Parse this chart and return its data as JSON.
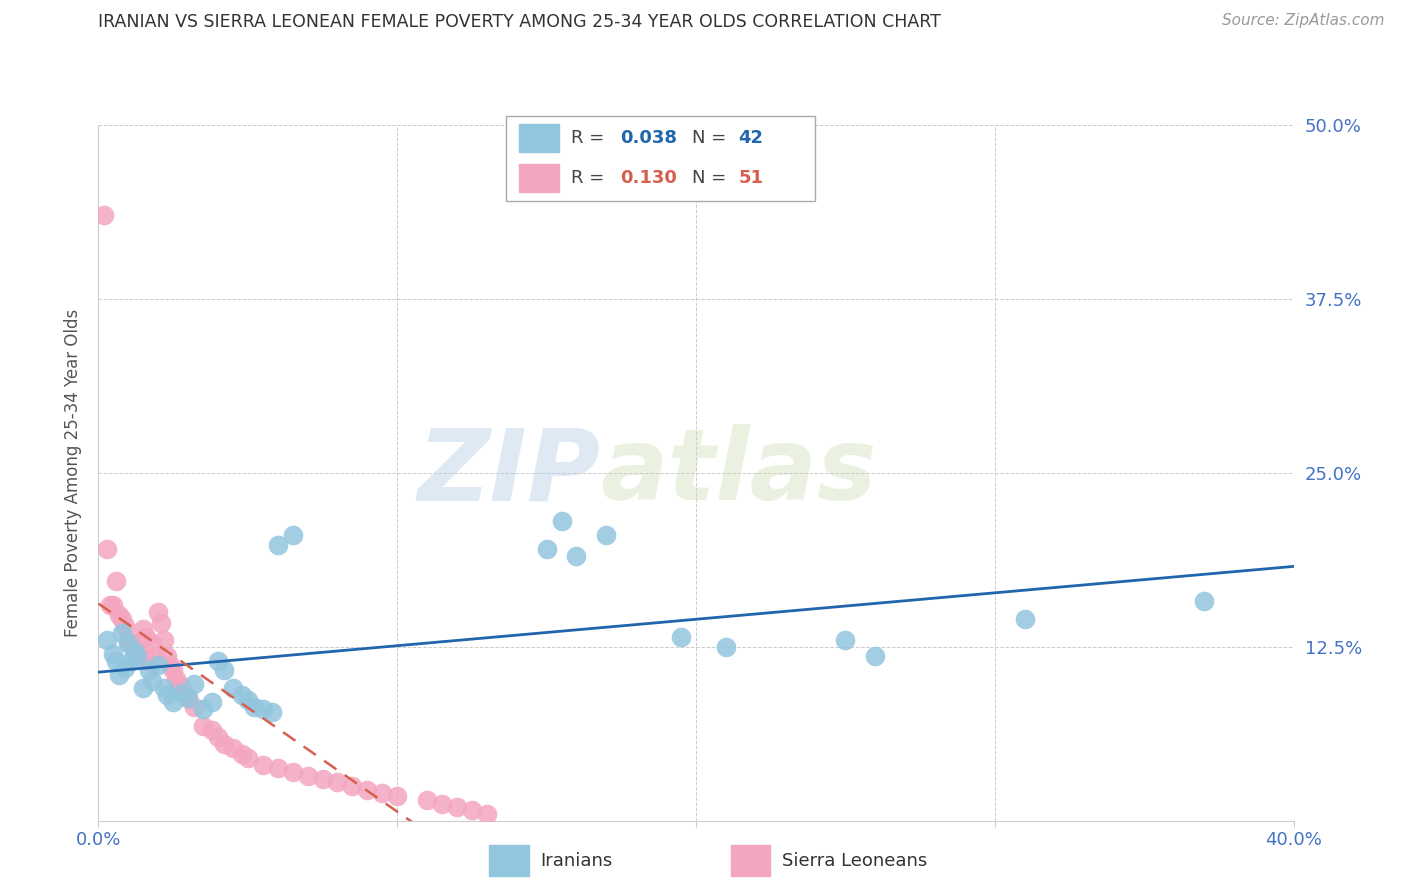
{
  "title": "IRANIAN VS SIERRA LEONEAN FEMALE POVERTY AMONG 25-34 YEAR OLDS CORRELATION CHART",
  "source": "Source: ZipAtlas.com",
  "ylabel": "Female Poverty Among 25-34 Year Olds",
  "xlim": [
    0.0,
    0.4
  ],
  "ylim": [
    0.0,
    0.5
  ],
  "xticks": [
    0.0,
    0.1,
    0.2,
    0.3,
    0.4
  ],
  "xticklabels": [
    "0.0%",
    "",
    "",
    "",
    "40.0%"
  ],
  "yticks": [
    0.0,
    0.125,
    0.25,
    0.375,
    0.5
  ],
  "yticklabels": [
    "",
    "12.5%",
    "25.0%",
    "37.5%",
    "50.0%"
  ],
  "ytick_color": "#4472c4",
  "xtick_color": "#4472c4",
  "background_color": "#ffffff",
  "grid_color": "#cccccc",
  "watermark_zip": "ZIP",
  "watermark_atlas": "atlas",
  "legend_r1": "0.038",
  "legend_n1": "42",
  "legend_r2": "0.130",
  "legend_n2": "51",
  "iranian_color": "#92c5de",
  "sierra_color": "#f4a6c0",
  "trend_iranian_color": "#2166ac",
  "trend_sierra_color": "#d6604d",
  "iranian_points_x": [
    0.003,
    0.005,
    0.006,
    0.007,
    0.008,
    0.009,
    0.01,
    0.011,
    0.012,
    0.013,
    0.015,
    0.017,
    0.018,
    0.02,
    0.022,
    0.023,
    0.025,
    0.028,
    0.03,
    0.032,
    0.035,
    0.038,
    0.04,
    0.042,
    0.045,
    0.048,
    0.05,
    0.052,
    0.055,
    0.058,
    0.06,
    0.065,
    0.15,
    0.155,
    0.16,
    0.17,
    0.195,
    0.21,
    0.25,
    0.26,
    0.31,
    0.37
  ],
  "iranian_points_y": [
    0.13,
    0.12,
    0.115,
    0.105,
    0.135,
    0.11,
    0.128,
    0.115,
    0.122,
    0.118,
    0.095,
    0.108,
    0.1,
    0.112,
    0.095,
    0.09,
    0.085,
    0.092,
    0.088,
    0.098,
    0.08,
    0.085,
    0.115,
    0.108,
    0.095,
    0.09,
    0.087,
    0.082,
    0.08,
    0.078,
    0.198,
    0.205,
    0.195,
    0.215,
    0.19,
    0.205,
    0.132,
    0.125,
    0.13,
    0.118,
    0.145,
    0.158
  ],
  "sierra_points_x": [
    0.002,
    0.003,
    0.004,
    0.005,
    0.006,
    0.007,
    0.008,
    0.009,
    0.01,
    0.011,
    0.012,
    0.013,
    0.014,
    0.015,
    0.016,
    0.017,
    0.018,
    0.019,
    0.02,
    0.021,
    0.022,
    0.023,
    0.024,
    0.025,
    0.026,
    0.027,
    0.028,
    0.03,
    0.032,
    0.035,
    0.038,
    0.04,
    0.042,
    0.045,
    0.048,
    0.05,
    0.055,
    0.06,
    0.065,
    0.07,
    0.075,
    0.08,
    0.085,
    0.09,
    0.095,
    0.1,
    0.11,
    0.115,
    0.12,
    0.125,
    0.13
  ],
  "sierra_points_y": [
    0.435,
    0.195,
    0.155,
    0.155,
    0.172,
    0.148,
    0.145,
    0.14,
    0.13,
    0.128,
    0.125,
    0.122,
    0.118,
    0.138,
    0.132,
    0.115,
    0.128,
    0.118,
    0.15,
    0.142,
    0.13,
    0.118,
    0.112,
    0.108,
    0.102,
    0.098,
    0.095,
    0.088,
    0.082,
    0.068,
    0.065,
    0.06,
    0.055,
    0.052,
    0.048,
    0.045,
    0.04,
    0.038,
    0.035,
    0.032,
    0.03,
    0.028,
    0.025,
    0.022,
    0.02,
    0.018,
    0.015,
    0.012,
    0.01,
    0.008,
    0.005
  ]
}
